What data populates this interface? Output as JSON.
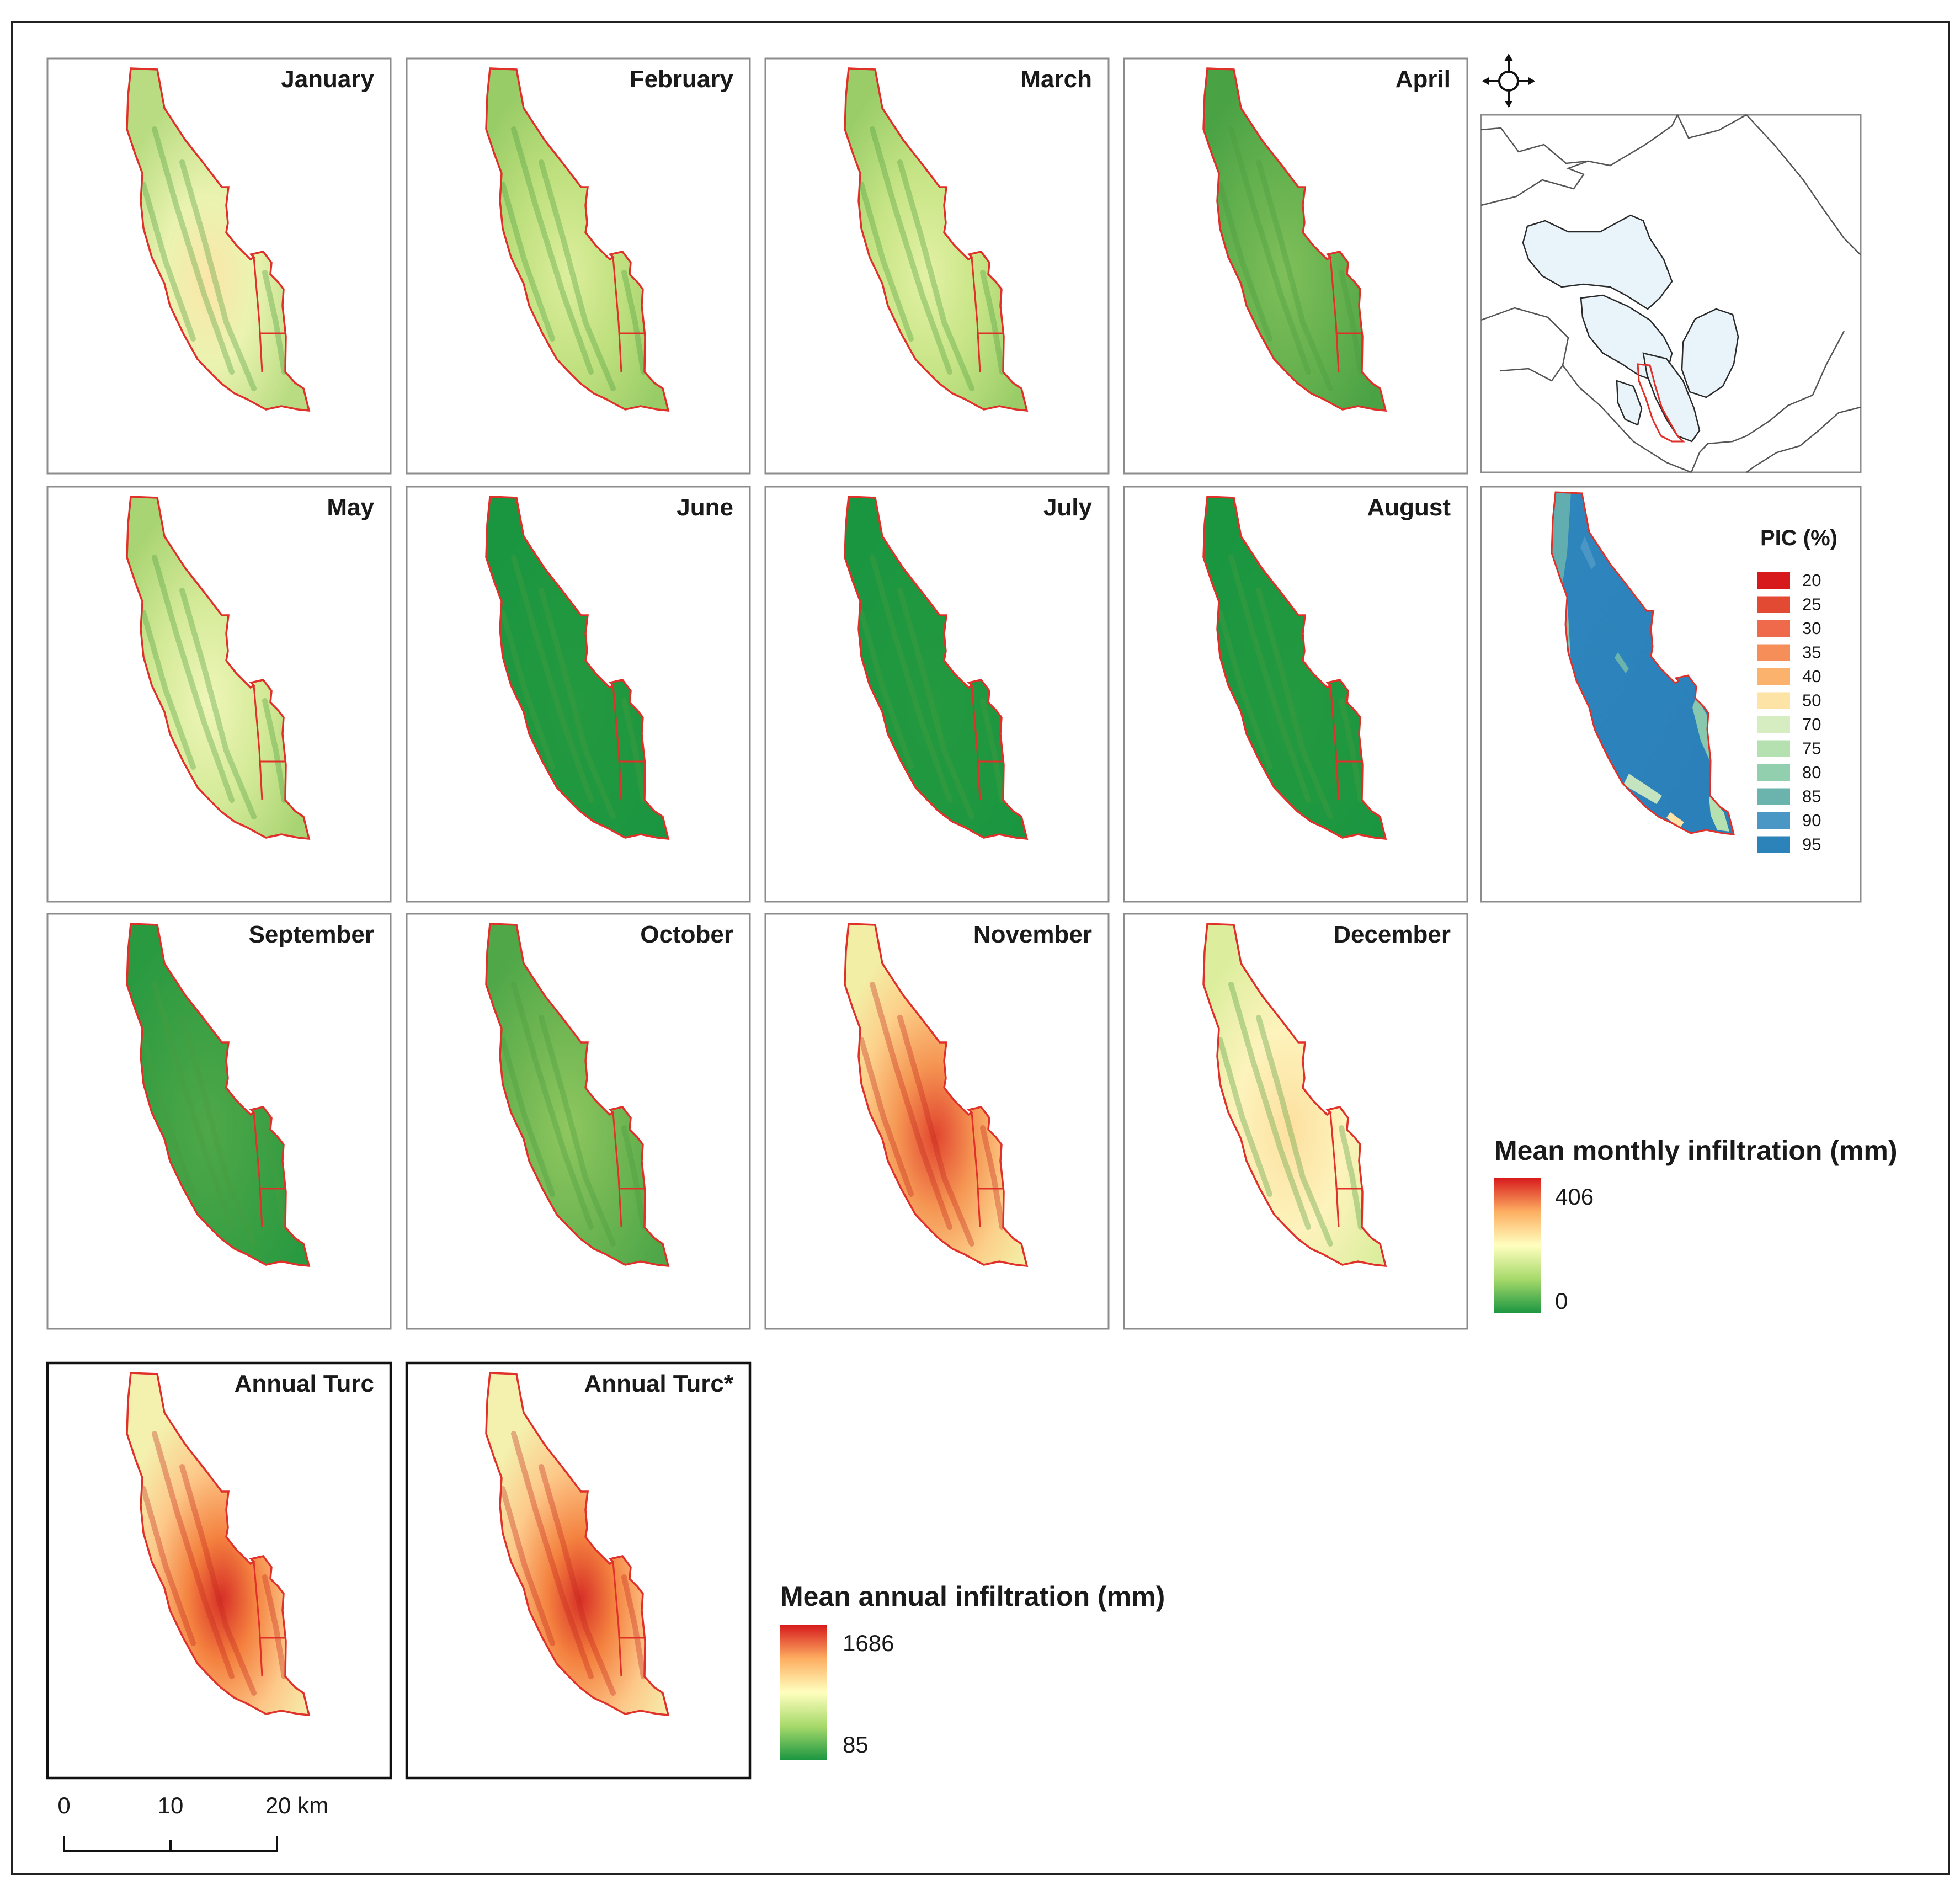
{
  "monthly_panels": [
    {
      "label": "January",
      "palette": "jan"
    },
    {
      "label": "February",
      "palette": "feb"
    },
    {
      "label": "March",
      "palette": "mar"
    },
    {
      "label": "April",
      "palette": "apr"
    },
    {
      "label": "May",
      "palette": "may"
    },
    {
      "label": "June",
      "palette": "dry"
    },
    {
      "label": "July",
      "palette": "dry"
    },
    {
      "label": "August",
      "palette": "dry"
    },
    {
      "label": "September",
      "palette": "sep"
    },
    {
      "label": "October",
      "palette": "oct"
    },
    {
      "label": "November",
      "palette": "nov"
    },
    {
      "label": "December",
      "palette": "dec"
    }
  ],
  "annual_panels": [
    {
      "label": "Annual Turc",
      "palette": "annual"
    },
    {
      "label": "Annual Turc*",
      "palette": "annual"
    }
  ],
  "legend_monthly": {
    "title": "Mean monthly infiltration (mm)",
    "max": "406",
    "min": "0"
  },
  "legend_annual": {
    "title": "Mean annual infiltration (mm)",
    "max": "1686",
    "min": "85"
  },
  "pic_legend": {
    "title": "PIC (%)",
    "classes": [
      {
        "value": "20",
        "color": "#d7191c"
      },
      {
        "value": "25",
        "color": "#e34a33"
      },
      {
        "value": "30",
        "color": "#ee6a4b"
      },
      {
        "value": "35",
        "color": "#f68e59"
      },
      {
        "value": "40",
        "color": "#fbb26c"
      },
      {
        "value": "50",
        "color": "#fde3a6"
      },
      {
        "value": "70",
        "color": "#d5edc0"
      },
      {
        "value": "75",
        "color": "#b5e0b0"
      },
      {
        "value": "80",
        "color": "#92cfae"
      },
      {
        "value": "85",
        "color": "#6ab4ad"
      },
      {
        "value": "90",
        "color": "#4a96c4"
      },
      {
        "value": "95",
        "color": "#2b83ba"
      }
    ]
  },
  "scale_bar": {
    "ticks": [
      "0",
      "10",
      "20 km"
    ]
  },
  "colors": {
    "boundary": "#e0302a",
    "ramp_low": "#1a9641",
    "ramp_mid": "#ffffbf",
    "ramp_high": "#d7191c"
  }
}
